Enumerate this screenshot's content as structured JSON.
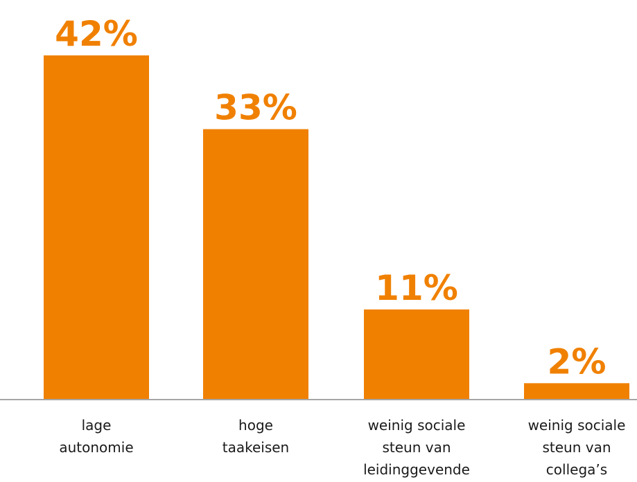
{
  "chart_data": {
    "type": "bar",
    "categories": [
      [
        "lage",
        "autonomie"
      ],
      [
        "hoge",
        "taakeisen"
      ],
      [
        "weinig sociale",
        "steun van",
        "leidinggevende"
      ],
      [
        "weinig sociale",
        "steun van",
        "collega’s"
      ]
    ],
    "values": [
      42,
      33,
      11,
      2
    ],
    "value_labels": [
      "42%",
      "33%",
      "11%",
      "2%"
    ],
    "title": "",
    "xlabel": "",
    "ylabel": "",
    "ylim": [
      0,
      42
    ],
    "grid": false,
    "legend": "none",
    "bar_color": "#F08000",
    "axis_color": "#A6A6A6"
  }
}
